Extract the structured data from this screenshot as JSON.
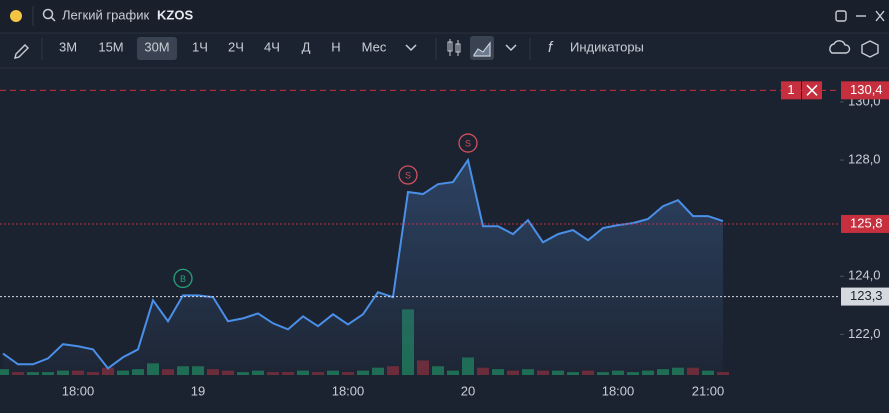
{
  "header": {
    "search_placeholder": "Легкий график",
    "ticker": "KZOS"
  },
  "toolbar": {
    "intervals": [
      "3М",
      "15М",
      "30М",
      "1Ч",
      "2Ч",
      "4Ч",
      "Д",
      "Н",
      "Мес"
    ],
    "active": "30М",
    "indicators": "Индикаторы"
  },
  "chart_data": {
    "type": "line",
    "categories": [
      null,
      null,
      null,
      null,
      null,
      "18:00",
      null,
      null,
      null,
      null,
      null,
      null,
      null,
      "19",
      null,
      null,
      null,
      null,
      null,
      null,
      null,
      null,
      null,
      "18:00",
      null,
      null,
      null,
      null,
      null,
      null,
      null,
      "20",
      null,
      null,
      null,
      null,
      null,
      null,
      null,
      null,
      null,
      "18:00",
      null,
      null,
      null,
      null,
      null,
      "21:00",
      null
    ],
    "values": [
      121.34,
      120.97,
      120.97,
      121.17,
      121.66,
      121.59,
      121.48,
      120.83,
      121.21,
      121.48,
      123.17,
      122.45,
      123.34,
      123.34,
      123.28,
      122.45,
      122.55,
      122.72,
      122.38,
      122.17,
      122.62,
      122.28,
      122.69,
      122.34,
      122.69,
      123.45,
      123.28,
      126.9,
      126.83,
      127.17,
      127.24,
      128.0,
      125.72,
      125.72,
      125.45,
      125.93,
      125.17,
      125.45,
      125.59,
      125.24,
      125.66,
      125.76,
      125.83,
      125.97,
      126.41,
      126.62,
      126.07,
      126.07,
      125.9
    ],
    "volume": [
      4,
      2,
      2,
      2,
      3,
      3,
      2,
      5,
      3,
      4,
      8,
      4,
      6,
      6,
      4,
      3,
      2,
      3,
      2,
      2,
      3,
      2,
      3,
      2,
      3,
      5,
      6,
      45,
      10,
      6,
      3,
      12,
      5,
      4,
      3,
      4,
      3,
      3,
      2,
      3,
      2,
      3,
      2,
      3,
      4,
      5,
      5,
      3,
      2
    ],
    "color": "#4a8fe8",
    "up_color": "#1e6e52",
    "down_color": "#6e2a36",
    "ylim": [
      120.6,
      131.1
    ],
    "yticks": [
      {
        "value": 122,
        "label": "122,0"
      },
      {
        "value": 124,
        "label": "124,0"
      },
      {
        "value": 128,
        "label": "128,0"
      },
      {
        "value": 130,
        "label": "130,0"
      }
    ],
    "annotations": [
      {
        "label": "B",
        "index": 12,
        "color": "#26a17b"
      },
      {
        "label": "S",
        "index": 27,
        "color": "#d0505f"
      },
      {
        "label": "S",
        "index": 31,
        "color": "#d0505f"
      }
    ],
    "price_lines": [
      {
        "value": 130.4,
        "label": "130,4",
        "color": "#c62f3e",
        "style": "dashed",
        "order_label": "1"
      },
      {
        "value": 125.8,
        "label": "125,8",
        "color": "#c62f3e",
        "style": "dotted"
      },
      {
        "value": 123.3,
        "label": "123,3",
        "color": "#d5d9df",
        "style": "dotted"
      }
    ]
  }
}
